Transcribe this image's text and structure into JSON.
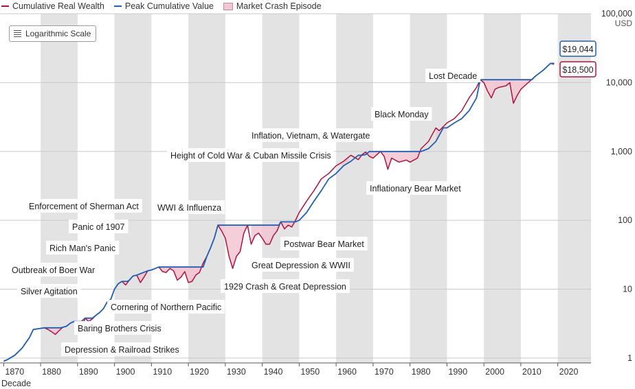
{
  "legend": {
    "real_wealth": "Cumulative Real Wealth",
    "peak_value": "Peak Cumulative Value",
    "crash_episode": "Market Crash Episode"
  },
  "scale_button": {
    "label": "Logarithmic Scale",
    "icon": "list-lines-icon"
  },
  "colors": {
    "wealth_line": "#b0123c",
    "peak_line": "#1f5fb5",
    "crash_fill": "#f2c5d2",
    "decade_band": "#e3e3e3",
    "grid": "#c9c9c9"
  },
  "chart_data": {
    "type": "line",
    "y_scale": "log",
    "ylim": [
      0.85,
      100000
    ],
    "xlim": [
      1869,
      2029
    ],
    "x_ticks": [
      1870,
      1880,
      1890,
      1900,
      1910,
      1920,
      1930,
      1940,
      1950,
      1960,
      1970,
      1980,
      1990,
      2000,
      2010,
      2020
    ],
    "x_tick_labels": [
      "1870",
      "1880",
      "1890",
      "1900",
      "1910",
      "1920",
      "1930",
      "1940",
      "1950",
      "1960",
      "1970",
      "1980",
      "1990",
      "2000",
      "2010",
      "2020"
    ],
    "xlabel": "Decade",
    "y_ticks": [
      1,
      10,
      100,
      1000,
      10000,
      100000
    ],
    "y_tick_labels": [
      "1",
      "10",
      "100",
      "1,000",
      "10,000",
      "100,000"
    ],
    "y_unit": "USD",
    "grid": true,
    "legend_position": "top-left",
    "series": [
      {
        "name": "Cumulative Real Wealth",
        "color": "#b0123c",
        "x": [
          1870,
          1871,
          1873,
          1875,
          1877,
          1878,
          1880,
          1881,
          1882,
          1883,
          1884,
          1885,
          1886,
          1887,
          1888,
          1889,
          1890,
          1891,
          1892,
          1893,
          1894,
          1895,
          1896,
          1897,
          1898,
          1899,
          1900,
          1901,
          1902,
          1903,
          1904,
          1905,
          1906,
          1907,
          1908,
          1909,
          1910,
          1911,
          1912,
          1913,
          1914,
          1915,
          1916,
          1917,
          1918,
          1919,
          1920,
          1921,
          1922,
          1923,
          1924,
          1925,
          1926,
          1927,
          1928,
          1929,
          1930,
          1931,
          1932,
          1933,
          1934,
          1935,
          1936,
          1937,
          1938,
          1939,
          1940,
          1941,
          1942,
          1943,
          1944,
          1945,
          1946,
          1947,
          1948,
          1949,
          1950,
          1952,
          1954,
          1956,
          1958,
          1960,
          1962,
          1964,
          1966,
          1967,
          1968,
          1969,
          1970,
          1972,
          1973,
          1974,
          1975,
          1977,
          1979,
          1980,
          1982,
          1983,
          1985,
          1987,
          1987.9,
          1990,
          1992,
          1994,
          1996,
          1998,
          1999,
          2000,
          2001,
          2002,
          2003,
          2004,
          2006,
          2007,
          2008,
          2009,
          2010,
          2012,
          2014,
          2016,
          2018,
          2019
        ],
        "values": [
          0.9,
          0.95,
          1.1,
          1.4,
          2.0,
          2.6,
          2.7,
          2.75,
          2.6,
          2.4,
          2.2,
          2.5,
          2.8,
          2.9,
          3.2,
          3.4,
          3.3,
          3.4,
          3.8,
          3.4,
          3.7,
          4.2,
          4.6,
          5.2,
          6.5,
          7.2,
          10.0,
          12.0,
          13.0,
          11.5,
          13.5,
          15.5,
          16.0,
          12.5,
          15.0,
          18.5,
          19.0,
          20.0,
          21.0,
          18.0,
          17.5,
          20.0,
          18.5,
          13.5,
          15.0,
          18.0,
          12.5,
          13.0,
          16.0,
          17.5,
          24.0,
          30.0,
          40.0,
          55.0,
          85.0,
          70.0,
          55.0,
          30.0,
          20.0,
          30.0,
          35.0,
          65.0,
          85.0,
          45.0,
          60.0,
          65.0,
          55.0,
          45.0,
          45.0,
          60.0,
          70.0,
          95.0,
          75.0,
          85.0,
          80.0,
          100.0,
          130.0,
          190.0,
          270.0,
          400.0,
          480.0,
          620.0,
          720.0,
          880.0,
          760.0,
          900.0,
          980.0,
          850.0,
          800.0,
          1000.0,
          850.0,
          550.0,
          800.0,
          700.0,
          750.0,
          700.0,
          800.0,
          1100.0,
          1400.0,
          2200.0,
          2000.0,
          2600.0,
          3000.0,
          3900.0,
          6000.0,
          8500.0,
          11000.0,
          10000.0,
          7500.0,
          6000.0,
          8000.0,
          8500.0,
          9000.0,
          10000.0,
          5000.0,
          6500.0,
          8000.0,
          10000.0,
          12500.0,
          15000.0,
          19000.0,
          18500.0
        ]
      },
      {
        "name": "Peak Cumulative Value",
        "color": "#1f5fb5",
        "x": [
          1870,
          1871,
          1873,
          1875,
          1877,
          1878,
          1880,
          1881,
          1885.5,
          1886,
          1887,
          1888,
          1889,
          1891.8,
          1892,
          1894,
          1895,
          1896,
          1897,
          1898,
          1899,
          1900,
          1901,
          1902,
          1903.5,
          1904,
          1905,
          1906,
          1909,
          1910,
          1911,
          1912,
          1924,
          1925,
          1926,
          1927,
          1928,
          1936.5,
          1937,
          1944,
          1944.5,
          1945,
          1947,
          1948,
          1949,
          1950,
          1952,
          1954,
          1956,
          1958,
          1960,
          1962,
          1964,
          1966,
          1967,
          1968,
          1969,
          1972,
          1983,
          1985,
          1987,
          1989,
          1990,
          1992,
          1994,
          1996,
          1998,
          1999,
          2013,
          2014,
          2016,
          2018,
          2019
        ],
        "values": [
          0.9,
          0.95,
          1.1,
          1.4,
          2.0,
          2.6,
          2.7,
          2.75,
          2.75,
          2.8,
          2.9,
          3.2,
          3.4,
          3.4,
          3.8,
          3.8,
          4.2,
          4.6,
          5.2,
          6.5,
          7.2,
          10.0,
          12.0,
          13.0,
          13.0,
          13.5,
          15.5,
          16.0,
          18.5,
          19.0,
          20.0,
          21.0,
          21.0,
          30.0,
          40.0,
          55.0,
          85.0,
          85.0,
          85.0,
          85.0,
          85.0,
          95.0,
          95.0,
          95.0,
          95.0,
          100.0,
          130.0,
          190.0,
          270.0,
          400.0,
          480.0,
          620.0,
          720.0,
          880.0,
          880.0,
          900.0,
          1000.0,
          1000.0,
          1000.0,
          1100.0,
          1400.0,
          2200.0,
          2200.0,
          2600.0,
          3000.0,
          3900.0,
          6000.0,
          11000.0,
          11000.0,
          12500.0,
          15000.0,
          19000.0,
          19044.0
        ]
      }
    ],
    "crash_episodes": [
      {
        "label": "Depression & Railroad Strikes",
        "start": 1881.0,
        "end": 1885.5
      },
      {
        "label": "Baring Brothers Crisis",
        "start": 1889.5,
        "end": 1891.8
      },
      {
        "label": "Silver Agitation",
        "start": 1892.0,
        "end": 1895.0
      },
      {
        "label": "Outbreak of Boer War",
        "start": 1899.5,
        "end": 1900.0
      },
      {
        "label": "Cornering of Northern Pacific",
        "start": 1902.0,
        "end": 1903.5
      },
      {
        "label": "Rich Man's Panic",
        "start": 1906.0,
        "end": 1909.0
      },
      {
        "label": "Panic of 1907",
        "start": 1906.5,
        "end": 1909.0
      },
      {
        "label": "Enforcement of Sherman Act",
        "start": 1912.0,
        "end": 1924.0
      },
      {
        "label": "WWI & Influenza",
        "start": 1912.0,
        "end": 1924.0
      },
      {
        "label": "1929 Crash & Great Depression",
        "start": 1928.0,
        "end": 1936.5
      },
      {
        "label": "Great Depression & WWII",
        "start": 1937.0,
        "end": 1944.5
      },
      {
        "label": "Postwar Bear Market",
        "start": 1945.0,
        "end": 1949.5
      },
      {
        "label": "Height of Cold War & Cuban Missile Crisis",
        "start": 1961.5,
        "end": 1963.5
      },
      {
        "label": "Inflation, Vietnam, & Watergate",
        "start": 1966.0,
        "end": 1968.0
      },
      {
        "label": "Inflationary Bear Market",
        "start": 1969.0,
        "end": 1983.0
      },
      {
        "label": "Black Monday",
        "start": 1987.0,
        "end": 1989.0
      },
      {
        "label": "Lost Decade",
        "start": 1999.0,
        "end": 2013.0
      }
    ],
    "end_values": [
      {
        "label": "$19,044",
        "series": "Peak Cumulative Value",
        "value": 19044,
        "year": 2019
      },
      {
        "label": "$18,500",
        "series": "Cumulative Real Wealth",
        "value": 18500,
        "year": 2019
      }
    ]
  }
}
